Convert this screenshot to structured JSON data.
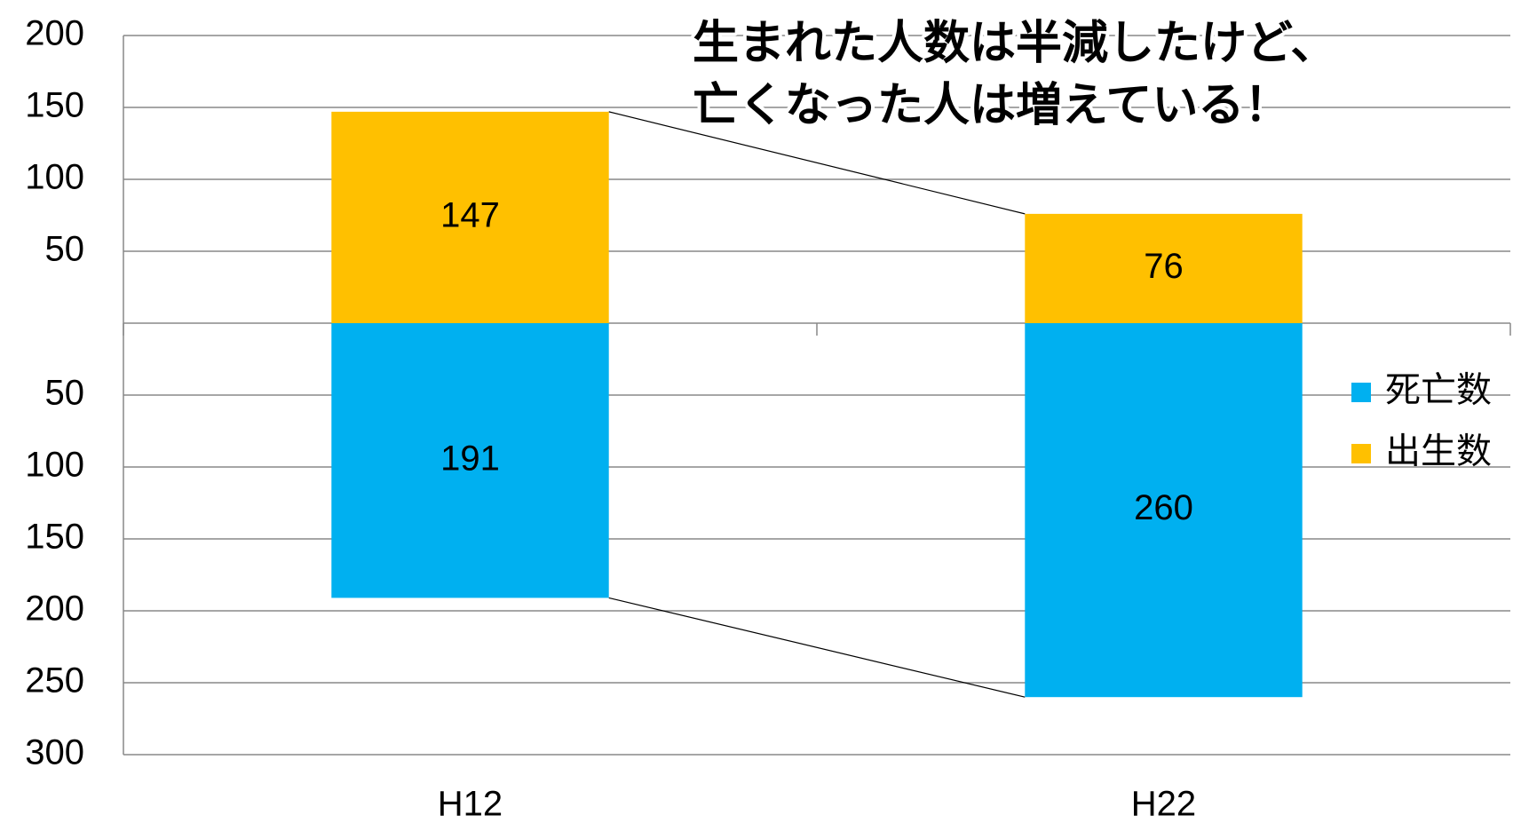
{
  "chart_data": {
    "type": "bar",
    "stacked": "diverging",
    "annotation": [
      "生まれた人数は半減したけど、",
      "亡くなった人は増えている！"
    ],
    "categories": [
      "H12",
      "H22"
    ],
    "series": [
      {
        "name": "死亡数",
        "color": "#00b0f0",
        "values": [
          -191,
          -260
        ],
        "value_labels": [
          "191",
          "260"
        ]
      },
      {
        "name": "出生数",
        "color": "#ffc000",
        "values": [
          147,
          76
        ]
      }
    ],
    "ylim": [
      -300,
      200
    ],
    "yticks": [
      200,
      150,
      100,
      50,
      {
        "value": -50,
        "label": "50"
      },
      {
        "value": -100,
        "label": "100"
      },
      {
        "value": -150,
        "label": "150"
      },
      {
        "value": -200,
        "label": "200"
      },
      {
        "value": -250,
        "label": "250"
      },
      {
        "value": -300,
        "label": "300"
      }
    ],
    "grid": true,
    "legend": "right"
  }
}
